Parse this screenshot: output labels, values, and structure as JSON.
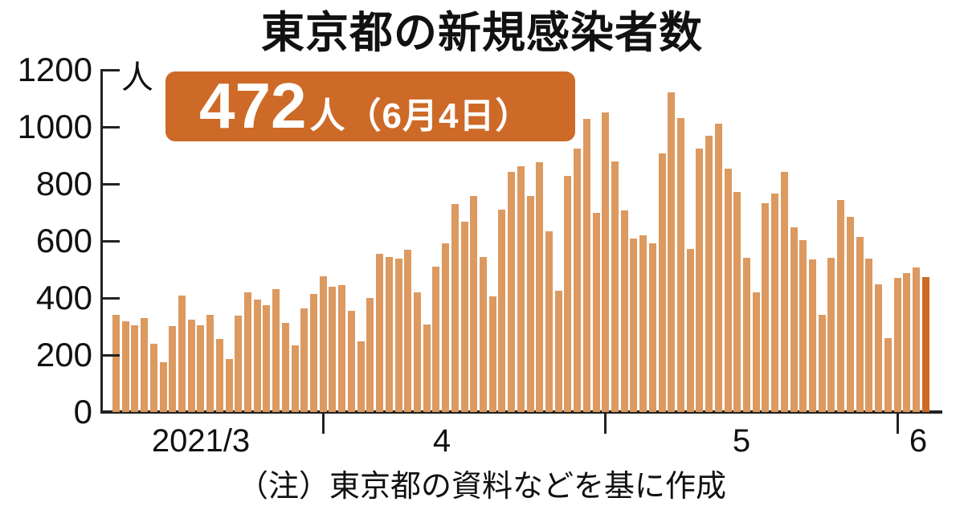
{
  "title": "東京都の新規感染者数",
  "callout": {
    "value": "472",
    "suffix": "人（6月4日）"
  },
  "note": "（注）東京都の資料などを基に作成",
  "colors": {
    "bar": "#DC9960",
    "highlight_bar": "#CF6A24",
    "callout_bg": "#CD6A28",
    "axis": "#222222"
  },
  "chart_data": {
    "type": "bar",
    "title": "東京都の新規感染者数",
    "unit": "人",
    "x_start_date": "2021-03-10",
    "x_end_date": "2021-06-04",
    "values": [
      340,
      317,
      304,
      330,
      239,
      175,
      300,
      409,
      323,
      303,
      342,
      256,
      187,
      337,
      420,
      394,
      376,
      430,
      313,
      234,
      364,
      414,
      475,
      440,
      446,
      355,
      249,
      399,
      555,
      545,
      537,
      570,
      421,
      306,
      510,
      591,
      729,
      667,
      759,
      543,
      405,
      711,
      843,
      861,
      759,
      876,
      635,
      425,
      828,
      925,
      1027,
      698,
      1050,
      879,
      708,
      609,
      621,
      591,
      907,
      1121,
      1032,
      573,
      925,
      969,
      1010,
      854,
      772,
      542,
      419,
      732,
      766,
      843,
      649,
      602,
      535,
      340,
      542,
      743,
      684,
      614,
      539,
      448,
      260,
      471,
      487,
      508,
      472
    ],
    "highlight_index": 86,
    "highlight_label": "472人（6月4日）",
    "ylim": [
      0,
      1200
    ],
    "yticks": [
      0,
      200,
      400,
      600,
      800,
      1000,
      1200
    ],
    "x_tick_indices": [
      22,
      52,
      83
    ],
    "x_labels": [
      {
        "text": "2021/3",
        "index": 8.9
      },
      {
        "text": "4",
        "index": 34.5
      },
      {
        "text": "5",
        "index": 66.3
      },
      {
        "text": "6",
        "index": 85.1
      }
    ],
    "grid": false,
    "legend": false
  }
}
